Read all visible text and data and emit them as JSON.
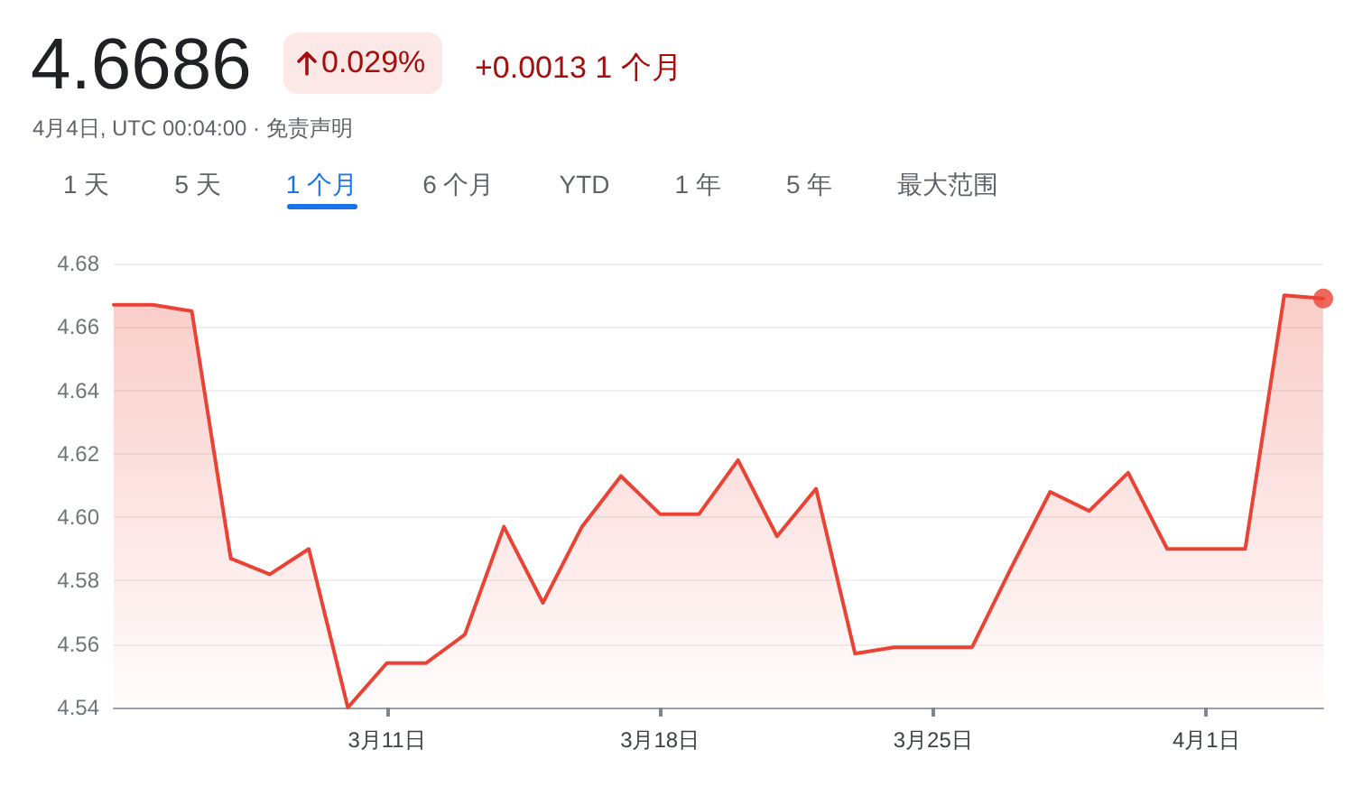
{
  "chart_data": {
    "type": "area",
    "title": "4.6686",
    "subtitle": "4月4日, UTC 00:04:00 · 免责声明",
    "annotations": [
      "0.029%",
      "+0.0013 1 个月",
      "1 天",
      "5 天",
      "1 个月",
      "6 个月",
      "YTD",
      "1 年",
      "5 年",
      "最大范围"
    ],
    "series": [
      {
        "color": "#ea4335",
        "x": [
          "--03-04",
          "--03-05",
          "--03-06",
          "--03-07",
          "--03-08",
          "--03-09",
          "--03-10",
          "--03-11",
          "--03-12",
          "--03-13",
          "--03-14",
          "--03-15",
          "--03-16",
          "--03-17",
          "--03-18",
          "--03-19",
          "--03-20",
          "--03-21",
          "--03-22",
          "--03-23",
          "--03-24",
          "--03-25",
          "--03-26",
          "--03-27",
          "--03-28",
          "--03-29",
          "--03-30",
          "--03-31",
          "--04-01",
          "--04-02",
          "--04-03",
          "--04-04"
        ],
        "values": [
          4.667,
          4.667,
          4.665,
          4.587,
          4.582,
          4.59,
          4.54,
          4.554,
          4.554,
          4.563,
          4.597,
          4.573,
          4.597,
          4.613,
          4.601,
          4.601,
          4.618,
          4.594,
          4.609,
          4.557,
          4.559,
          4.559,
          4.559,
          4.584,
          4.608,
          4.602,
          4.614,
          4.59,
          4.59,
          4.59,
          4.67,
          4.669
        ]
      },
      {
        "type": "scatter",
        "color": "#ea4335",
        "marker": "circle",
        "x": [
          "--04-04"
        ],
        "values": [
          4.669
        ]
      }
    ],
    "xlim": [
      "--03-04",
      "--04-04"
    ],
    "xticks": [
      {
        "value": "--03-11",
        "label": "3月11日"
      },
      {
        "value": "--03-18",
        "label": "3月18日"
      },
      {
        "value": "--03-25",
        "label": "3月25日"
      },
      {
        "value": "--04-01",
        "label": "4月1日"
      }
    ],
    "ylim": [
      4.54,
      4.68
    ],
    "yticks": [
      4.54,
      4.56,
      4.58,
      {
        "value": 4.6,
        "label": "4.60"
      },
      4.62,
      4.64,
      4.66,
      4.68
    ],
    "grid": "y"
  }
}
